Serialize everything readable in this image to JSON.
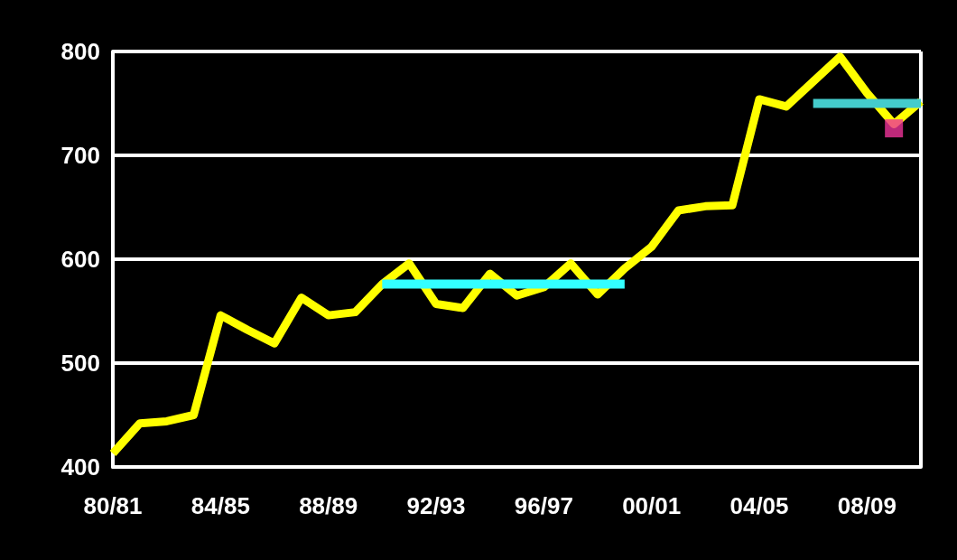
{
  "chart_data": {
    "type": "line",
    "categories": [
      "80/81",
      null,
      null,
      null,
      "84/85",
      null,
      null,
      null,
      "88/89",
      null,
      null,
      null,
      "92/93",
      null,
      null,
      null,
      "96/97",
      null,
      null,
      null,
      "00/01",
      null,
      null,
      null,
      "04/05",
      null,
      null,
      null,
      "08/09",
      null,
      null
    ],
    "series": [
      {
        "color": "#ffff00",
        "values": [
          413,
          442,
          444,
          450,
          546,
          532,
          519,
          563,
          546,
          549,
          576,
          596,
          557,
          553,
          586,
          565,
          573,
          596,
          566,
          591,
          612,
          647,
          651,
          652,
          754,
          747,
          771,
          795,
          760,
          730,
          752
        ]
      },
      {
        "color": "#33ffff",
        "values": [
          null,
          null,
          null,
          null,
          null,
          null,
          null,
          null,
          null,
          null,
          576,
          576,
          576,
          576,
          576,
          576,
          576,
          576,
          576,
          576,
          null,
          null,
          null,
          null,
          null,
          null,
          null,
          null,
          null,
          null,
          null
        ]
      },
      {
        "color": "#44cccc",
        "values": [
          null,
          null,
          null,
          null,
          null,
          null,
          null,
          null,
          null,
          null,
          null,
          null,
          null,
          null,
          null,
          null,
          null,
          null,
          null,
          null,
          null,
          null,
          null,
          null,
          null,
          null,
          750,
          750,
          750,
          750,
          750
        ]
      },
      {
        "type": "scatter",
        "marker": "square",
        "color": "#ee3399",
        "values": [
          null,
          null,
          null,
          null,
          null,
          null,
          null,
          null,
          null,
          null,
          null,
          null,
          null,
          null,
          null,
          null,
          null,
          null,
          null,
          null,
          null,
          null,
          null,
          null,
          null,
          null,
          null,
          null,
          null,
          726,
          null
        ]
      }
    ],
    "ylim": [
      400,
      800
    ],
    "yticks": [
      400,
      500,
      600,
      700,
      800
    ],
    "grid": "y",
    "marker": "none",
    "line_style": "solid"
  }
}
